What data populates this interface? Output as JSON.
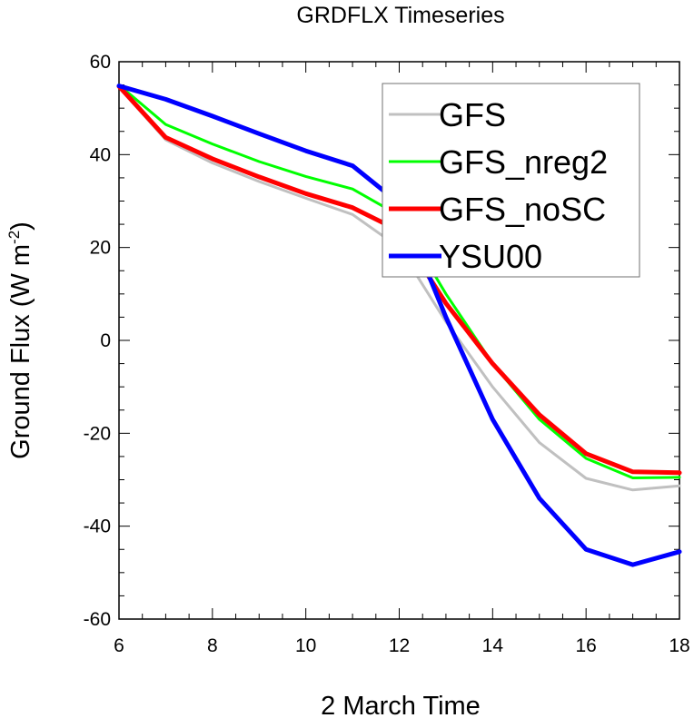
{
  "chart_data": {
    "type": "line",
    "title": "GRDFLX Timeseries",
    "xlabel": "2 March Time",
    "ylabel_base": "Ground Flux (W m",
    "ylabel_sup": "-2",
    "ylabel_close": ")",
    "xlim": [
      6,
      18
    ],
    "ylim": [
      -60,
      60
    ],
    "xticks": [
      6,
      8,
      10,
      12,
      14,
      16,
      18
    ],
    "yticks": [
      -60,
      -40,
      -20,
      0,
      20,
      40,
      60
    ],
    "x": [
      6,
      7,
      8,
      9,
      10,
      11,
      12,
      13,
      14,
      15,
      16,
      17,
      18
    ],
    "legend_position": "top-right",
    "grid": false,
    "series": [
      {
        "name": "GFS",
        "color": "#c0c0c0",
        "width": 3,
        "values": [
          54.5,
          43.2,
          38.2,
          34.2,
          30.6,
          27.1,
          20.0,
          4.0,
          -10.0,
          -22.0,
          -29.7,
          -32.2,
          -31.3
        ]
      },
      {
        "name": "GFS_nreg2",
        "color": "#00ff00",
        "width": 3,
        "values": [
          55.0,
          46.5,
          42.3,
          38.5,
          35.3,
          32.6,
          26.9,
          10.0,
          -5.0,
          -17.0,
          -25.4,
          -29.6,
          -29.5
        ]
      },
      {
        "name": "GFS_noSC",
        "color": "#ff0000",
        "width": 5,
        "values": [
          54.7,
          43.7,
          39.1,
          35.2,
          31.6,
          28.6,
          23.6,
          8.0,
          -5.0,
          -16.0,
          -24.4,
          -28.3,
          -28.5
        ]
      },
      {
        "name": "YSU00",
        "color": "#0000ff",
        "width": 5,
        "values": [
          54.8,
          51.9,
          48.3,
          44.5,
          40.8,
          37.6,
          29.5,
          5.0,
          -17.0,
          -34.0,
          -45.0,
          -48.3,
          -45.5
        ]
      }
    ]
  }
}
